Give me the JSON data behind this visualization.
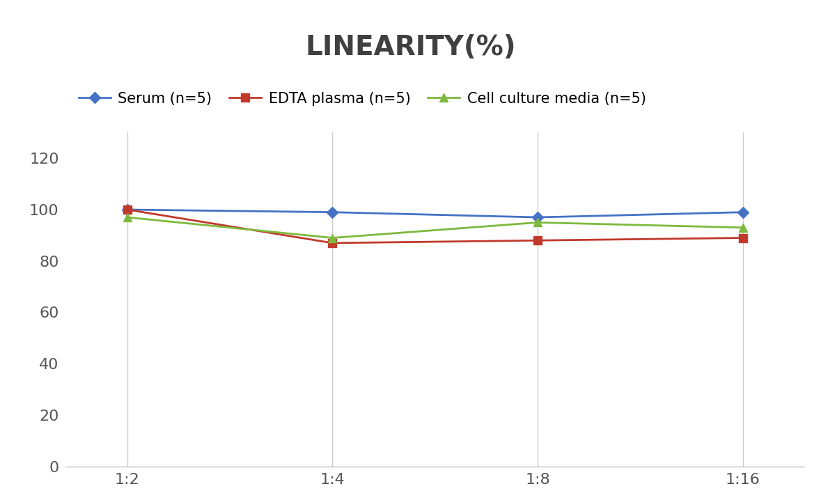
{
  "title": "LINEARITY(%)",
  "x_labels": [
    "1:2",
    "1:4",
    "1:8",
    "1:16"
  ],
  "series": [
    {
      "name": "Serum (n=5)",
      "values": [
        100,
        99,
        97,
        99
      ],
      "color": "#4472C4",
      "marker": "D",
      "linewidth": 2,
      "markersize": 8
    },
    {
      "name": "EDTA plasma (n=5)",
      "values": [
        100,
        87,
        88,
        89
      ],
      "color": "#C0392B",
      "marker": "s",
      "linewidth": 2,
      "markersize": 8
    },
    {
      "name": "Cell culture media (n=5)",
      "values": [
        97,
        89,
        95,
        93
      ],
      "color": "#7DB93D",
      "marker": "^",
      "linewidth": 2,
      "markersize": 8
    }
  ],
  "ylim": [
    0,
    130
  ],
  "yticks": [
    0,
    20,
    40,
    60,
    80,
    100,
    120
  ],
  "title_fontsize": 28,
  "tick_fontsize": 16,
  "legend_fontsize": 15,
  "background_color": "#ffffff",
  "grid_color": "#cccccc",
  "title_color": "#404040"
}
